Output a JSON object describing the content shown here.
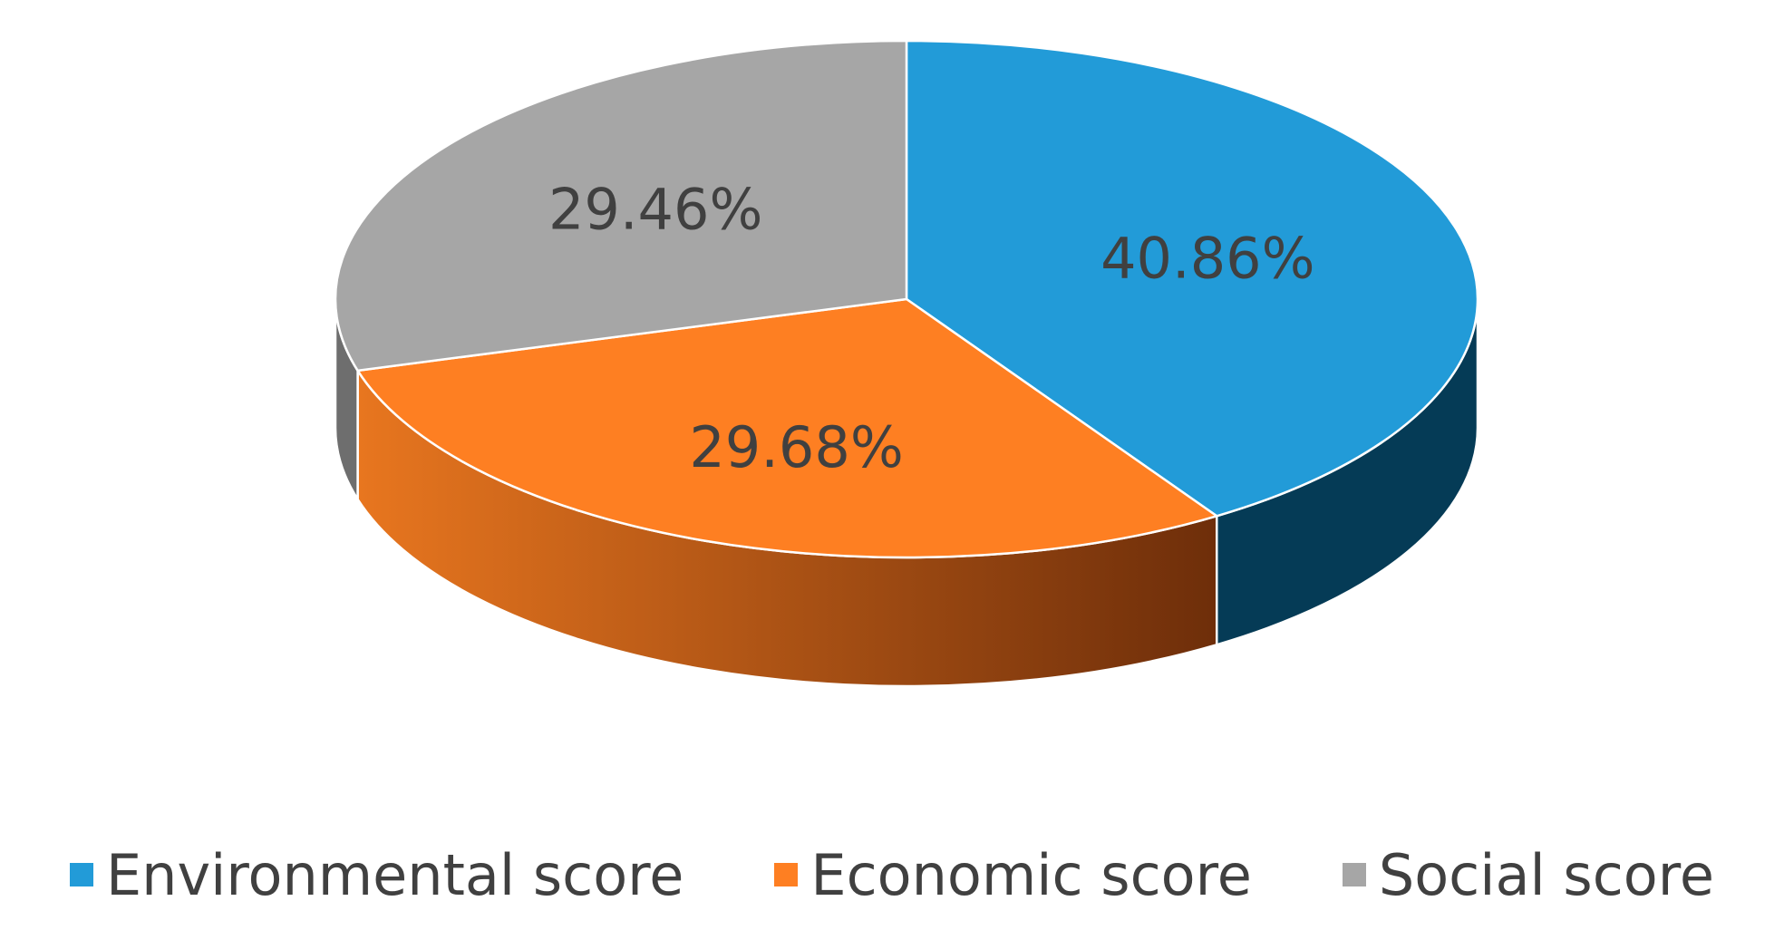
{
  "chart_data": {
    "type": "pie",
    "style": "3d",
    "start_angle": "12 o'clock, clockwise",
    "legend_position": "bottom",
    "data_label_format": "percent with 2 decimals",
    "series": [
      {
        "name": "Environmental score",
        "value": 40.86,
        "label": "40.86%",
        "color": "#229BD8",
        "side_color": "#053B56"
      },
      {
        "name": "Economic score",
        "value": 29.68,
        "label": "29.68%",
        "color": "#FE7F22",
        "side_color": "#C75F16"
      },
      {
        "name": "Social score",
        "value": 29.46,
        "label": "29.46%",
        "color": "#A6A6A6",
        "side_color": "#6E6E6E"
      }
    ]
  }
}
